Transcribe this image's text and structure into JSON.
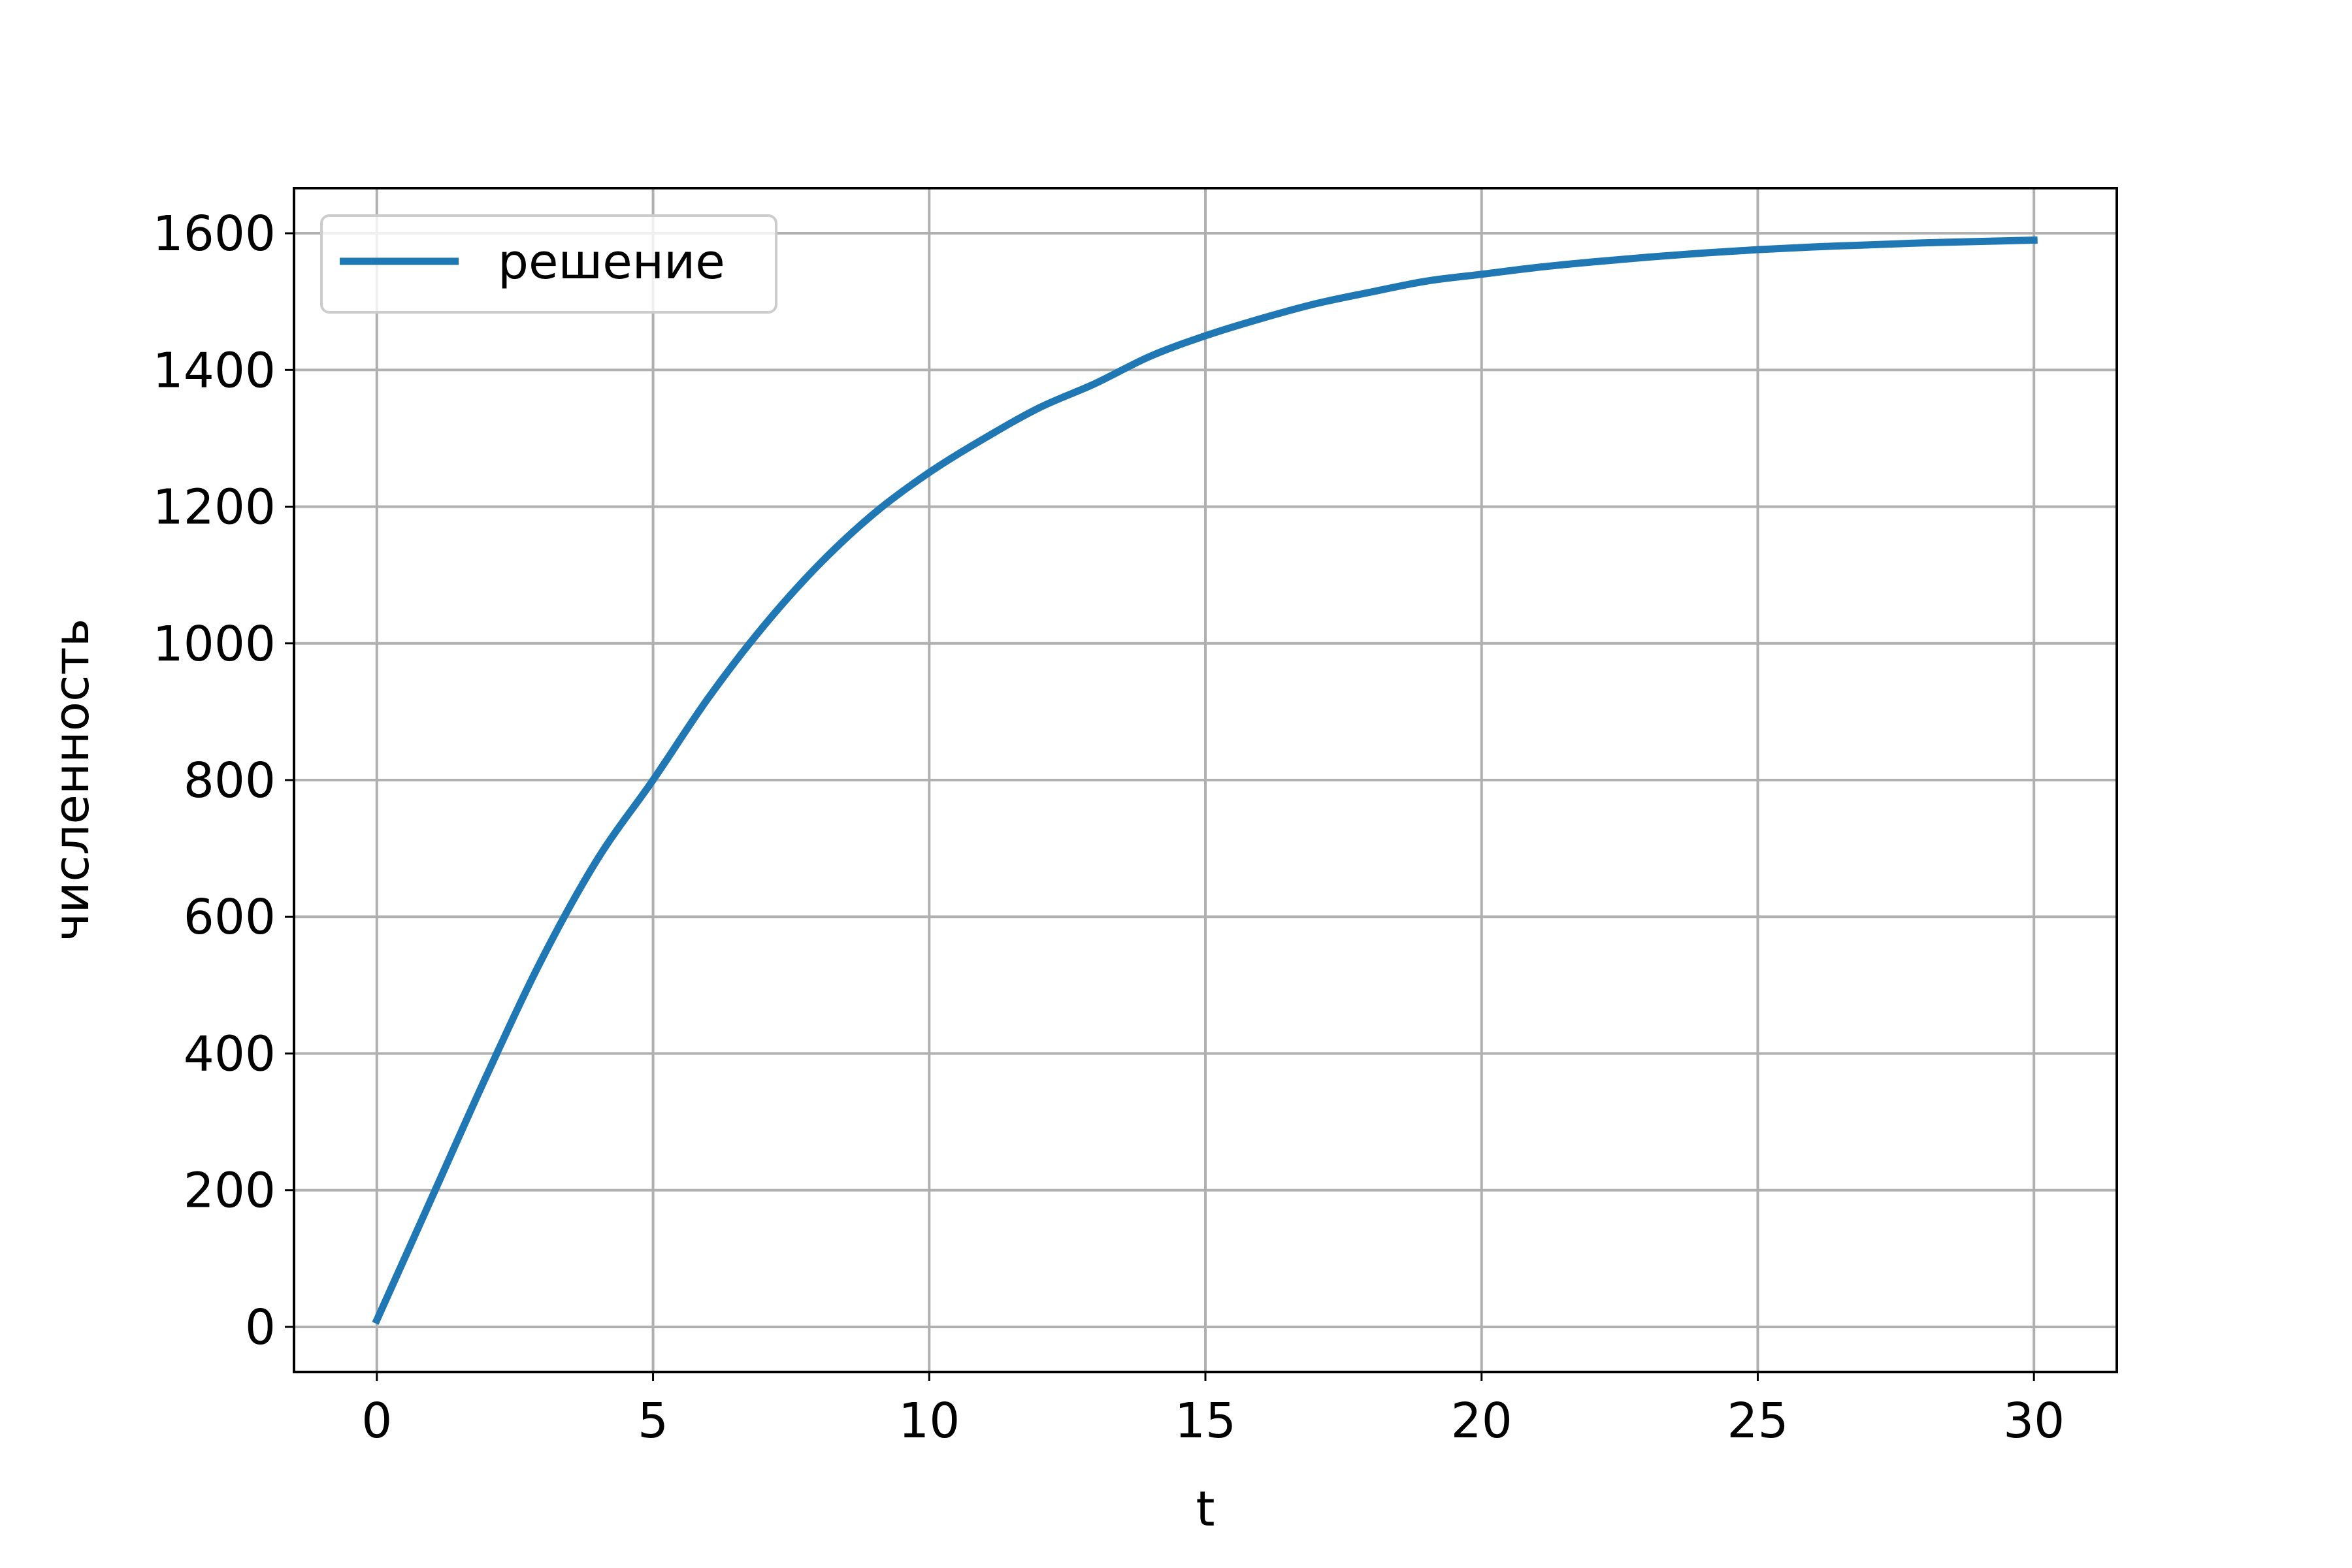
{
  "chart_data": {
    "type": "line",
    "xlabel": "t",
    "ylabel": "численность",
    "xlim": [
      -1.5,
      31.5
    ],
    "ylim": [
      -66,
      1666
    ],
    "xticks": [
      0,
      5,
      10,
      15,
      20,
      25,
      30
    ],
    "xtick_labels": [
      "0",
      "5",
      "10",
      "15",
      "20",
      "25",
      "30"
    ],
    "yticks": [
      0,
      200,
      400,
      600,
      800,
      1000,
      1200,
      1400,
      1600
    ],
    "ytick_labels": [
      "0",
      "200",
      "400",
      "600",
      "800",
      "1000",
      "1200",
      "1400",
      "1600"
    ],
    "grid": true,
    "legend_position": "upper-left",
    "series": [
      {
        "name": "решение",
        "color": "#1f77b4",
        "x": [
          0,
          1,
          2,
          3,
          4,
          5,
          6,
          7,
          8,
          9,
          10,
          11,
          12,
          13,
          14,
          15,
          16,
          17,
          18,
          19,
          20,
          21,
          22,
          23,
          24,
          25,
          26,
          27,
          28,
          29,
          30
        ],
        "y": [
          10,
          190,
          370,
          540,
          685,
          800,
          920,
          1025,
          1115,
          1190,
          1250,
          1300,
          1345,
          1380,
          1420,
          1450,
          1475,
          1497,
          1514,
          1530,
          1540,
          1550,
          1558,
          1565,
          1571,
          1576,
          1580,
          1583,
          1586,
          1588,
          1590
        ]
      }
    ]
  }
}
